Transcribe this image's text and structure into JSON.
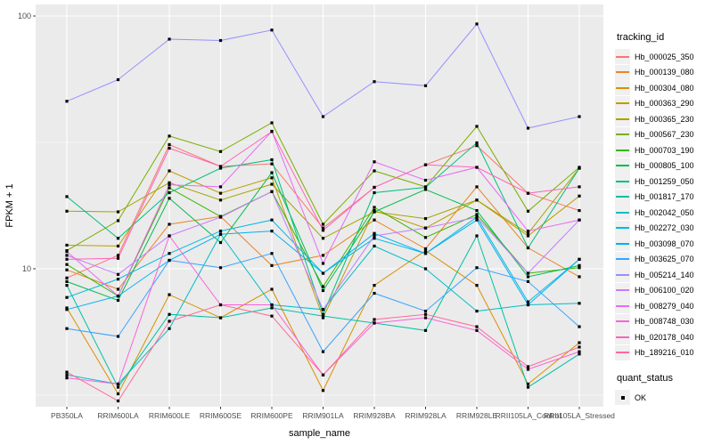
{
  "chart_data": {
    "type": "line",
    "title": "",
    "xlabel": "sample_name",
    "ylabel": "FPKM + 1",
    "y_scale": "log10",
    "ylim": [
      2.85,
      110
    ],
    "y_major_ticks": [
      10,
      100
    ],
    "y_minor_gridlines": [
      3.162,
      31.623
    ],
    "grid": true,
    "legend_position": "right",
    "panel_bg": "#EBEBEB",
    "gridline_color": "#FFFFFF",
    "tick_label_color": "#4D4D4D",
    "point_marker": "square",
    "point_color": "#000000",
    "categories": [
      "PB350LA",
      "RRIM600LA",
      "RRIM600LE",
      "RRIM600SE",
      "RRIM600PE",
      "RRIM901LA",
      "RRIM928BA",
      "RRIM928LA",
      "RRIM928LE",
      "RRII105LA_Control",
      "RRII105LA_Stressed"
    ],
    "legend_title": "tracking_id",
    "series": [
      {
        "name": "Hb_000025_350",
        "color": "#F8766D",
        "values": [
          9.2,
          11.3,
          31.0,
          25.4,
          26.0,
          14.5,
          21.0,
          25.8,
          30.7,
          19.9,
          17.0
        ]
      },
      {
        "name": "Hb_000139_080",
        "color": "#EA8526",
        "values": [
          9.9,
          8.3,
          15.0,
          16.1,
          10.3,
          11.3,
          15.6,
          12.0,
          21.1,
          12.1,
          9.3
        ]
      },
      {
        "name": "Hb_000304_080",
        "color": "#D89000",
        "values": [
          7.0,
          3.2,
          7.9,
          6.4,
          8.3,
          3.3,
          8.6,
          11.8,
          8.6,
          3.5,
          5.1
        ]
      },
      {
        "name": "Hb_000363_290",
        "color": "#C09B00",
        "values": [
          12.4,
          12.3,
          24.4,
          19.9,
          22.9,
          6.4,
          17.0,
          14.5,
          18.7,
          13.5,
          19.4
        ]
      },
      {
        "name": "Hb_000365_230",
        "color": "#A3A500",
        "values": [
          16.9,
          16.8,
          21.9,
          18.7,
          21.6,
          13.2,
          16.8,
          15.8,
          18.7,
          13.8,
          25.0
        ]
      },
      {
        "name": "Hb_000567_230",
        "color": "#7CAE00",
        "values": [
          11.8,
          15.5,
          33.5,
          29.1,
          37.8,
          15.0,
          24.4,
          21.1,
          36.6,
          16.9,
          25.2
        ]
      },
      {
        "name": "Hb_000703_190",
        "color": "#39B600",
        "values": [
          10.4,
          7.8,
          20.9,
          16.1,
          20.2,
          8.5,
          17.5,
          13.3,
          16.4,
          9.6,
          10.1
        ]
      },
      {
        "name": "Hb_000805_100",
        "color": "#00BB4E",
        "values": [
          8.9,
          7.5,
          19.0,
          12.7,
          24.0,
          8.2,
          16.8,
          20.6,
          17.0,
          9.3,
          10.3
        ]
      },
      {
        "name": "Hb_001259_050",
        "color": "#00BF7D",
        "values": [
          19.3,
          13.2,
          20.0,
          25.0,
          27.0,
          6.6,
          20.0,
          21.0,
          31.5,
          12.1,
          25.0
        ]
      },
      {
        "name": "Hb_001817_170",
        "color": "#00C1A3",
        "values": [
          8.6,
          3.4,
          6.6,
          6.4,
          7.0,
          6.5,
          6.1,
          5.7,
          13.5,
          3.4,
          4.6
        ]
      },
      {
        "name": "Hb_002042_050",
        "color": "#00BFC4",
        "values": [
          3.8,
          3.5,
          5.8,
          13.7,
          7.2,
          6.9,
          12.3,
          10.0,
          6.8,
          7.2,
          7.3
        ]
      },
      {
        "name": "Hb_002272_030",
        "color": "#00BAE0",
        "values": [
          7.7,
          9.1,
          11.5,
          14.1,
          15.6,
          9.6,
          13.2,
          11.5,
          16.0,
          7.4,
          10.9
        ]
      },
      {
        "name": "Hb_003098_070",
        "color": "#00B0F6",
        "values": [
          6.9,
          7.8,
          10.8,
          13.7,
          14.1,
          9.6,
          13.8,
          11.5,
          15.6,
          7.2,
          10.9
        ]
      },
      {
        "name": "Hb_003625_070",
        "color": "#35A2FF",
        "values": [
          5.8,
          5.4,
          10.8,
          10.1,
          11.5,
          4.7,
          8.0,
          6.8,
          10.1,
          8.9,
          5.9
        ]
      },
      {
        "name": "Hb_005214_140",
        "color": "#9590FF",
        "values": [
          46,
          56,
          81,
          80,
          88,
          40,
          55,
          53,
          93,
          36,
          40
        ]
      },
      {
        "name": "Hb_006100_020",
        "color": "#C77CFF",
        "values": [
          11.3,
          9.5,
          13.5,
          16.0,
          20.2,
          6.9,
          13.5,
          14.5,
          16.0,
          9.6,
          15.6
        ]
      },
      {
        "name": "Hb_008279_040",
        "color": "#E76BF3",
        "values": [
          11.7,
          7.8,
          21.5,
          21.1,
          35.0,
          10.5,
          26.5,
          22.4,
          25.2,
          14.1,
          15.6
        ]
      },
      {
        "name": "Hb_008748_030",
        "color": "#FA62DB",
        "values": [
          3.7,
          3.5,
          13.5,
          7.2,
          7.2,
          3.8,
          6.1,
          6.4,
          5.7,
          4.0,
          4.7
        ]
      },
      {
        "name": "Hb_020178_040",
        "color": "#FF62BC",
        "values": [
          10.9,
          11.0,
          30.0,
          25.4,
          34.9,
          14.2,
          21.0,
          25.8,
          25.2,
          19.9,
          21.1
        ]
      },
      {
        "name": "Hb_189216_010",
        "color": "#FF6A98",
        "values": [
          3.9,
          3.0,
          6.2,
          7.2,
          6.5,
          3.8,
          6.3,
          6.6,
          5.9,
          4.1,
          4.9
        ]
      }
    ],
    "quant_legend": {
      "title": "quant_status",
      "items": [
        {
          "label": "OK",
          "marker": "square",
          "color": "#000000"
        }
      ]
    }
  }
}
